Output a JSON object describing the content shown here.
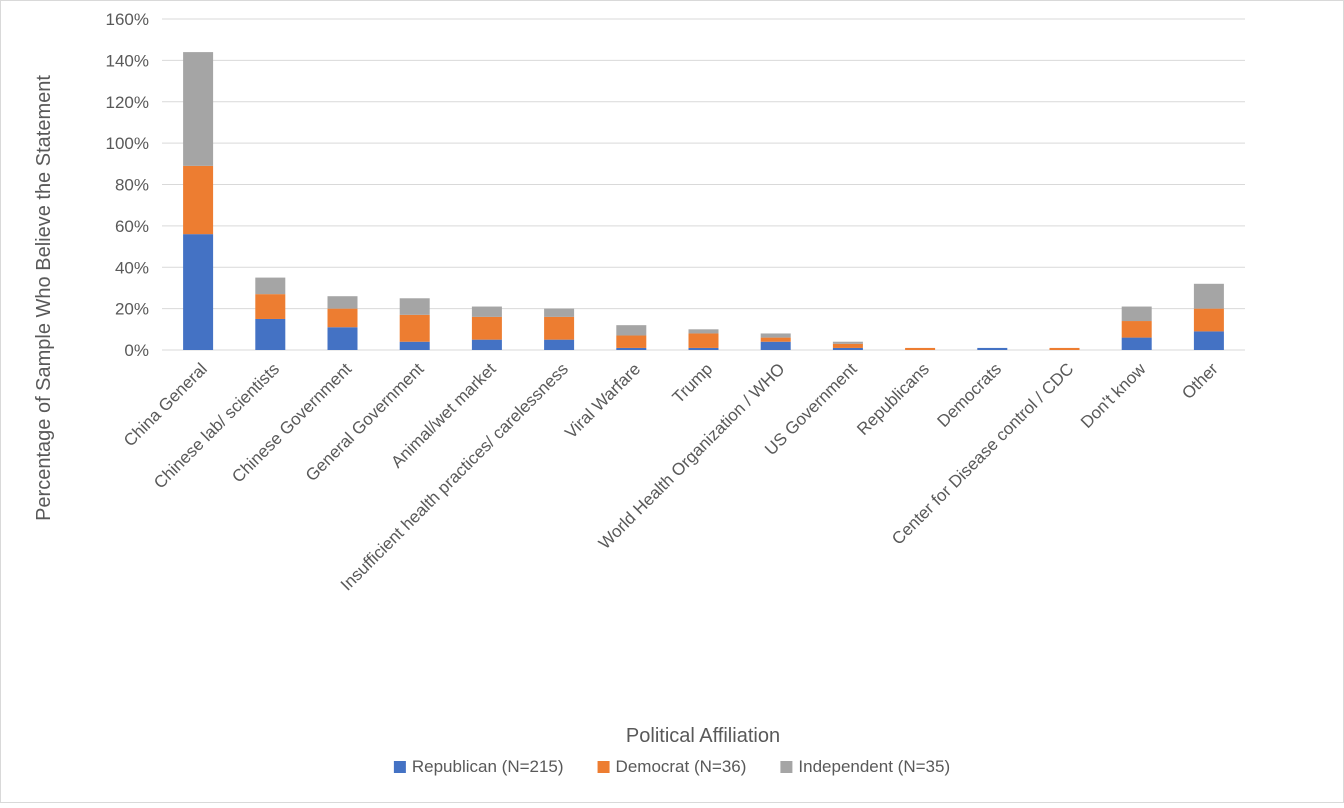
{
  "chart_data": {
    "type": "bar",
    "stacked": true,
    "title": "",
    "xlabel": "Political Affiliation",
    "ylabel": "Percentage of Sample Who Believe the Statement",
    "ylim": [
      0,
      160
    ],
    "yticks": [
      "0%",
      "20%",
      "40%",
      "60%",
      "80%",
      "100%",
      "120%",
      "140%",
      "160%"
    ],
    "grid": true,
    "legend_position": "bottom",
    "categories": [
      "China General",
      "Chinese lab/ scientists",
      "Chinese Government",
      "General Government",
      "Animal/wet market",
      "Insufficient health practices/ carelessness",
      "Viral Warfare",
      "Trump",
      "World Health Organization / WHO",
      "US Government",
      "Republicans",
      "Democrats",
      "Center for Disease control / CDC",
      "Don't know",
      "Other"
    ],
    "series": [
      {
        "name": "Republican (N=215)",
        "color": "#4472c4",
        "values": [
          56,
          15,
          11,
          4,
          5,
          5,
          1,
          1,
          4,
          1,
          0,
          1,
          0,
          6,
          9
        ]
      },
      {
        "name": "Democrat (N=36)",
        "color": "#ed7d31",
        "values": [
          33,
          12,
          9,
          13,
          11,
          11,
          6,
          7,
          2,
          2,
          1,
          0,
          1,
          8,
          11
        ]
      },
      {
        "name": "Independent (N=35)",
        "color": "#a5a5a5",
        "values": [
          55,
          8,
          6,
          8,
          5,
          4,
          5,
          2,
          2,
          1,
          0,
          0,
          0,
          7,
          12
        ]
      }
    ]
  }
}
